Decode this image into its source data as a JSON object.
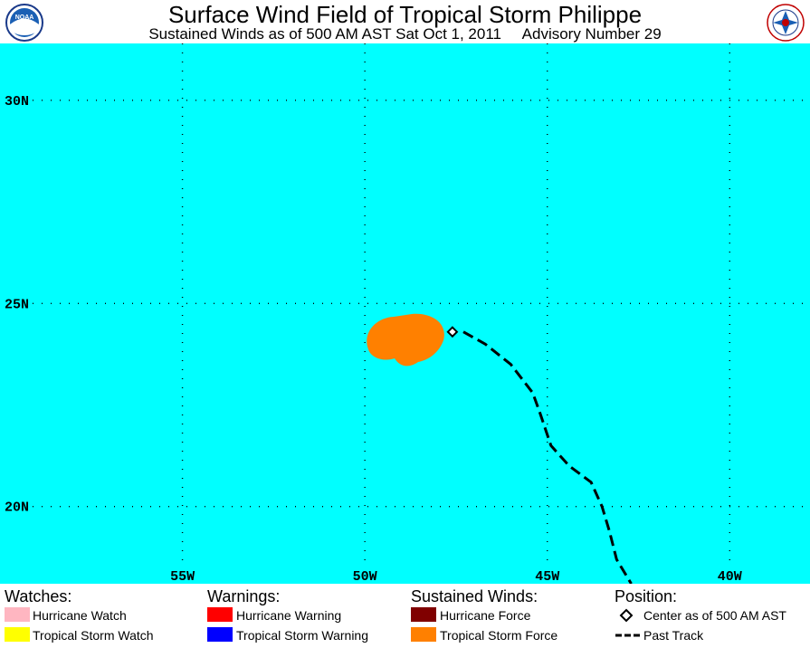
{
  "header": {
    "title": "Surface Wind Field of Tropical Storm Philippe",
    "subtitle": "Sustained Winds as of 500 AM AST Sat Oct 1, 2011     Advisory Number 29",
    "left_logo_text": "NOAA"
  },
  "map": {
    "ocean_color": "#00ffff",
    "lat_labels": [
      "30N",
      "25N",
      "20N"
    ],
    "lon_labels": [
      "55W",
      "50W",
      "45W",
      "40W"
    ],
    "lat_range": [
      18.1,
      31.4
    ],
    "lon_range": [
      60.0,
      37.8
    ],
    "tropical_storm_force_color": "#ff8000",
    "storm_center": {
      "lat": 24.3,
      "lon": 47.6
    },
    "past_track": [
      {
        "lat": 24.3,
        "lon": 47.3
      },
      {
        "lat": 24.0,
        "lon": 46.7
      },
      {
        "lat": 23.5,
        "lon": 46.0
      },
      {
        "lat": 22.8,
        "lon": 45.4
      },
      {
        "lat": 22.3,
        "lon": 45.2
      },
      {
        "lat": 21.5,
        "lon": 44.9
      },
      {
        "lat": 21.0,
        "lon": 44.4
      },
      {
        "lat": 20.6,
        "lon": 43.8
      },
      {
        "lat": 20.0,
        "lon": 43.5
      },
      {
        "lat": 19.4,
        "lon": 43.3
      },
      {
        "lat": 18.7,
        "lon": 43.1
      },
      {
        "lat": 18.1,
        "lon": 42.7
      }
    ]
  },
  "legend": {
    "watches": {
      "heading": "Watches:",
      "items": [
        {
          "label": "Hurricane Watch",
          "color": "#ffb6c1"
        },
        {
          "label": "Tropical Storm Watch",
          "color": "#ffff00"
        }
      ]
    },
    "warnings": {
      "heading": "Warnings:",
      "items": [
        {
          "label": "Hurricane Warning",
          "color": "#ff0000"
        },
        {
          "label": "Tropical Storm Warning",
          "color": "#0000ff"
        }
      ]
    },
    "winds": {
      "heading": "Sustained Winds:",
      "items": [
        {
          "label": "Hurricane Force",
          "color": "#800000"
        },
        {
          "label": "Tropical Storm Force",
          "color": "#ff8000"
        }
      ]
    },
    "position": {
      "heading": "Position:",
      "center_label": "Center as of 500 AM AST",
      "track_label": "Past Track"
    }
  }
}
